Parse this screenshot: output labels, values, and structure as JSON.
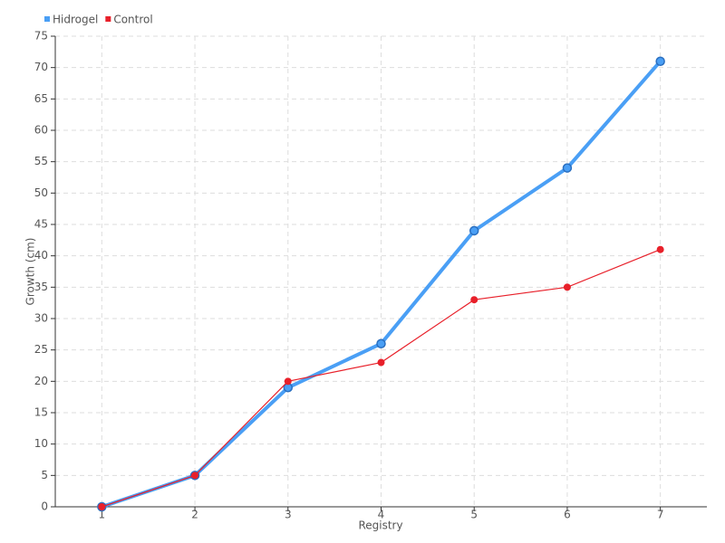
{
  "chart_data": {
    "type": "line",
    "x_label": "Registry",
    "y_label": "Growth (cm)",
    "categories": [
      "1",
      "2",
      "3",
      "4",
      "5",
      "6",
      "7"
    ],
    "series": [
      {
        "name": "Hidrogel",
        "color": "#4a9ff5",
        "values": [
          0,
          5,
          19,
          26,
          44,
          54,
          71
        ]
      },
      {
        "name": "Control",
        "color": "#e8202a",
        "values": [
          0,
          5,
          20,
          23,
          33,
          35,
          41
        ]
      }
    ],
    "ylim": [
      0,
      75
    ],
    "yticks": [
      0,
      5,
      10,
      15,
      20,
      25,
      30,
      35,
      40,
      45,
      50,
      55,
      60,
      65,
      70,
      75
    ],
    "grid": true,
    "legend": "top-left"
  }
}
